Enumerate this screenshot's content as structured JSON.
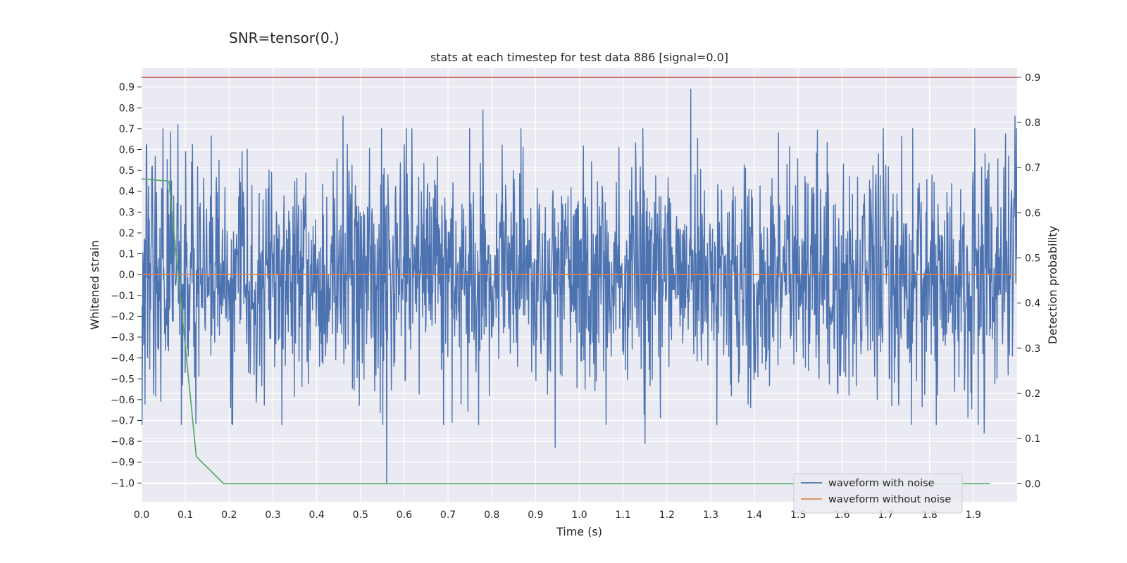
{
  "suptitle": "SNR=tensor(0.)",
  "chart_data": {
    "type": "line",
    "title": "stats at each timestep for test data 886 [signal=0.0]",
    "xlabel": "Time (s)",
    "ylabel": "Whitened strain",
    "y2label": "Detection probability",
    "xlim": [
      0.0,
      2.0
    ],
    "ylim": [
      -1.09,
      0.99
    ],
    "y2lim": [
      -0.04,
      0.92
    ],
    "xticks": [
      "0.0",
      "0.1",
      "0.2",
      "0.3",
      "0.4",
      "0.5",
      "0.6",
      "0.7",
      "0.8",
      "0.9",
      "1.0",
      "1.1",
      "1.2",
      "1.3",
      "1.4",
      "1.5",
      "1.6",
      "1.7",
      "1.8",
      "1.9"
    ],
    "yticks": [
      "0.9",
      "0.8",
      "0.7",
      "0.6",
      "0.5",
      "0.4",
      "0.3",
      "0.2",
      "0.1",
      "0.0",
      "−0.1",
      "−0.2",
      "−0.3",
      "−0.4",
      "−0.5",
      "−0.6",
      "−0.7",
      "−0.8",
      "−0.9",
      "−1.0"
    ],
    "y2ticks": [
      "0.9",
      "0.8",
      "0.7",
      "0.6",
      "0.5",
      "0.4",
      "0.3",
      "0.2",
      "0.1",
      "0.0"
    ],
    "grid": true,
    "legend_position": "lower-right",
    "series": [
      {
        "name": "waveform with noise",
        "axis": "left",
        "color": "#4c72b0",
        "kind": "noise",
        "x_range": [
          0.0,
          2.0
        ],
        "n_points": 2048,
        "approx_std": 0.28,
        "highlight_points": [
          {
            "x": 0.083,
            "y": 0.72
          },
          {
            "x": 0.46,
            "y": 0.76
          },
          {
            "x": 0.56,
            "y": -1.0
          },
          {
            "x": 0.78,
            "y": 0.79
          },
          {
            "x": 0.945,
            "y": -0.83
          },
          {
            "x": 1.15,
            "y": -0.81
          },
          {
            "x": 1.255,
            "y": 0.89
          },
          {
            "x": 1.925,
            "y": -0.76
          },
          {
            "x": 1.995,
            "y": 0.76
          }
        ]
      },
      {
        "name": "waveform without noise",
        "axis": "left",
        "color": "#dd8452",
        "x": [
          0.0,
          2.0
        ],
        "y": [
          0.0,
          0.0
        ]
      },
      {
        "name": "",
        "axis": "right",
        "color": "#55a868",
        "x": [
          0.0,
          0.0625,
          0.125,
          0.1875,
          0.25,
          0.5,
          1.0,
          1.5,
          1.9375
        ],
        "y": [
          0.675,
          0.67,
          0.06,
          0.0,
          0.0,
          0.0,
          0.0,
          0.0,
          0.0
        ]
      }
    ],
    "threshold": {
      "axis": "right",
      "y": 0.9,
      "color": "#c44e52"
    }
  }
}
